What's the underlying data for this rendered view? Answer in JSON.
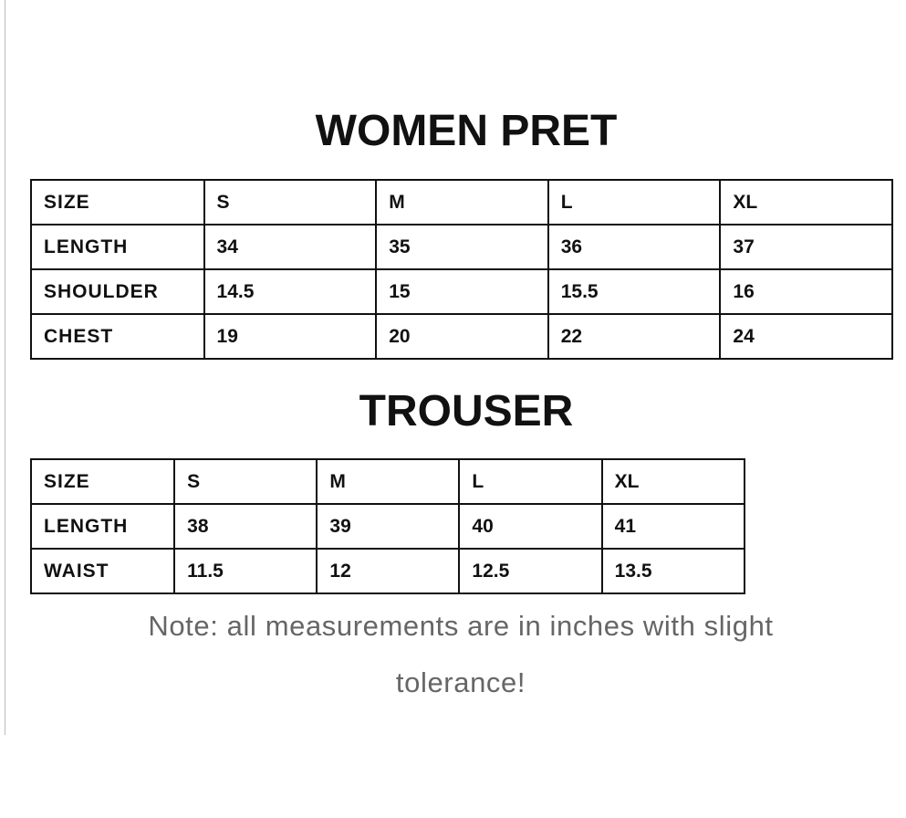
{
  "women_pret": {
    "title": "WOMEN PRET",
    "rows": [
      [
        "SIZE",
        "S",
        "M",
        "L",
        "XL"
      ],
      [
        "LENGTH",
        "34",
        "35",
        "36",
        "37"
      ],
      [
        "SHOULDER",
        "14.5",
        "15",
        "15.5",
        "16"
      ],
      [
        "CHEST",
        "19",
        "20",
        "22",
        "24"
      ]
    ]
  },
  "trouser": {
    "title": "TROUSER",
    "rows": [
      [
        "SIZE",
        "S",
        "M",
        "L",
        "XL"
      ],
      [
        "LENGTH",
        "38",
        "39",
        "40",
        "41"
      ],
      [
        "WAIST",
        "11.5",
        "12",
        "12.5",
        "13.5"
      ]
    ]
  },
  "note": {
    "line1": "Note: all measurements are in inches with slight",
    "line2": "tolerance!"
  }
}
